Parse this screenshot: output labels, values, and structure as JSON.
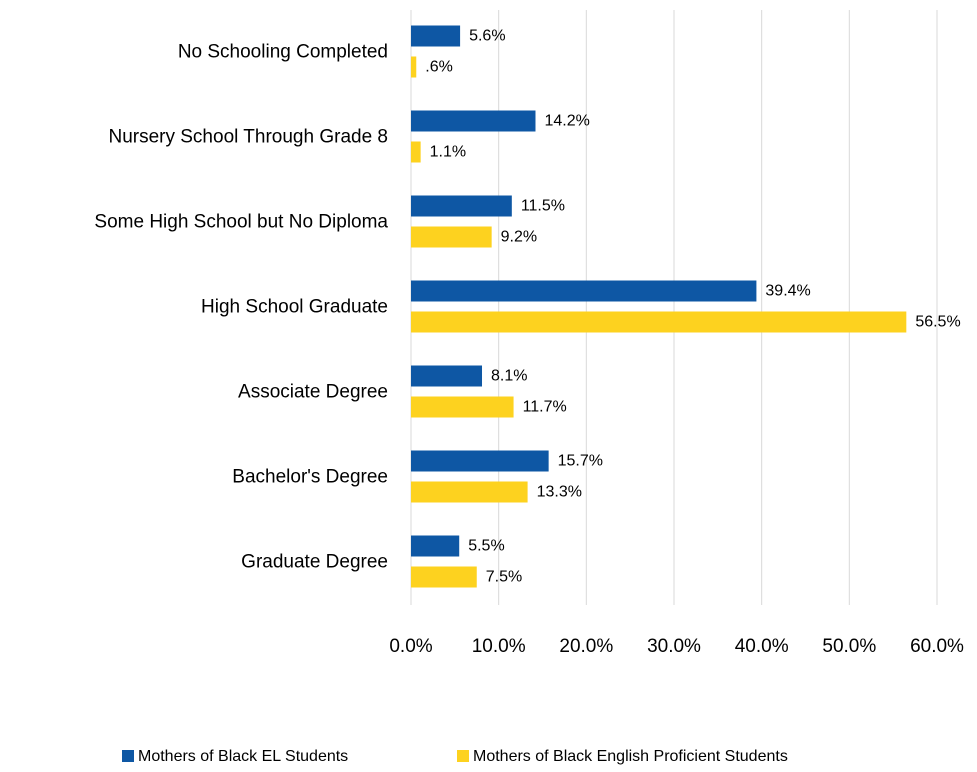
{
  "chart_data": {
    "type": "bar",
    "orientation": "horizontal",
    "categories": [
      "No Schooling Completed",
      "Nursery School Through Grade 8",
      "Some High School but No Diploma",
      "High School Graduate",
      "Associate Degree",
      "Bachelor's Degree",
      "Graduate Degree"
    ],
    "series": [
      {
        "name": "Mothers of Black EL Students",
        "color": "#0e57a4",
        "values": [
          5.6,
          14.2,
          11.5,
          39.4,
          8.1,
          15.7,
          5.5
        ],
        "value_labels": [
          "5.6%",
          "14.2%",
          "11.5%",
          "39.4%",
          "8.1%",
          "15.7%",
          "5.5%"
        ]
      },
      {
        "name": "Mothers of Black English Proficient Students",
        "color": "#fdd21f",
        "values": [
          0.6,
          1.1,
          9.2,
          56.5,
          11.7,
          13.3,
          7.5
        ],
        "value_labels": [
          ".6%",
          "1.1%",
          "9.2%",
          "56.5%",
          "11.7%",
          "13.3%",
          "7.5%"
        ]
      }
    ],
    "xlim": [
      0,
      60
    ],
    "xticks": [
      {
        "value": 0,
        "label": "0.0%"
      },
      {
        "value": 10,
        "label": "10.0%"
      },
      {
        "value": 20,
        "label": "20.0%"
      },
      {
        "value": 30,
        "label": "30.0%"
      },
      {
        "value": 40,
        "label": "40.0%"
      },
      {
        "value": 50,
        "label": "50.0%"
      },
      {
        "value": 60,
        "label": "60.0%"
      }
    ],
    "grid": true,
    "legend": "bottom"
  }
}
